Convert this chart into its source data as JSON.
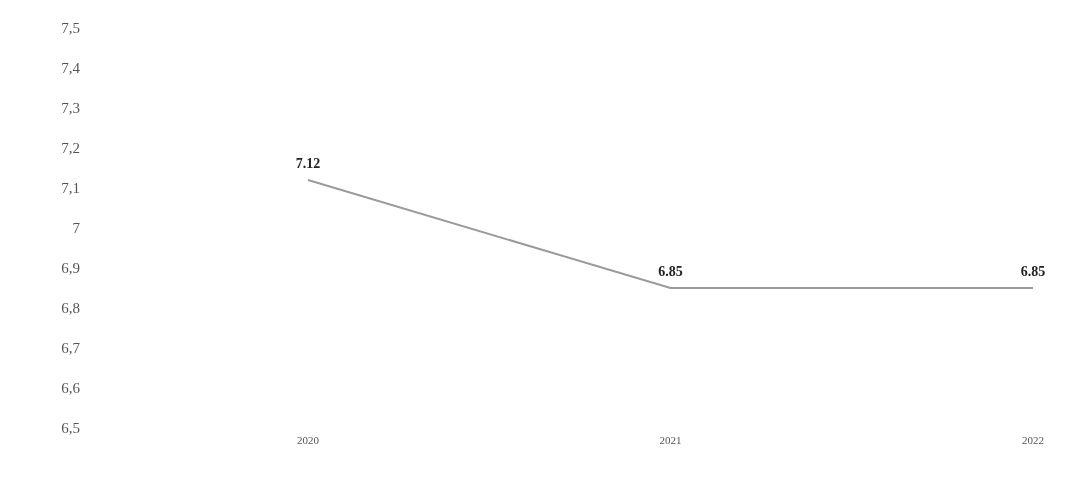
{
  "chart_data": {
    "type": "line",
    "categories": [
      "2020",
      "2021",
      "2022"
    ],
    "series": [
      {
        "color": "#9a9a9a",
        "values": [
          7.12,
          6.85,
          6.85
        ]
      }
    ],
    "ylim": [
      6.5,
      7.5
    ],
    "yticks": [
      {
        "value": 6.5,
        "label": "6,5"
      },
      {
        "value": 6.6,
        "label": "6,6"
      },
      {
        "value": 6.7,
        "label": "6,7"
      },
      {
        "value": 6.8,
        "label": "6,8"
      },
      {
        "value": 6.9,
        "label": "6,9"
      },
      7,
      {
        "value": 7.1,
        "label": "7,1"
      },
      {
        "value": 7.2,
        "label": "7,2"
      },
      {
        "value": 7.3,
        "label": "7,3"
      },
      {
        "value": 7.4,
        "label": "7,4"
      },
      {
        "value": 7.5,
        "label": "7,5"
      }
    ],
    "data_labels": true,
    "grid": false,
    "legend": false,
    "marker": "none",
    "line_style": "solid"
  }
}
